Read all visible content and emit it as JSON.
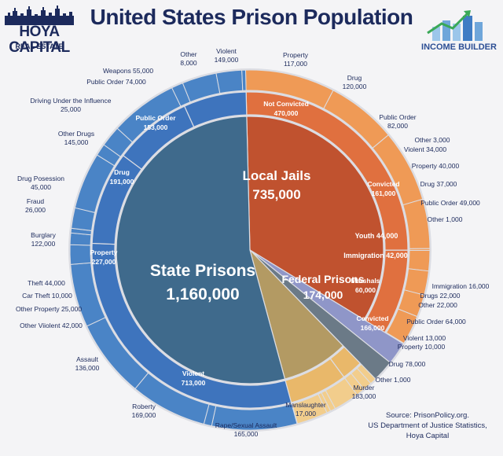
{
  "header": {
    "title": "United States Prison Population",
    "logo_left_name": "HOYA CAPITAL",
    "logo_left_sub": "REAL ESTATE",
    "logo_right_name": "INCOME BUILDER"
  },
  "source": {
    "line1": "Source: PrisonPolicy.org.",
    "line2": "US Department of Justice Statistics,",
    "line3": "Hoya Capital"
  },
  "colors": {
    "state": "#3f6a8c",
    "state_mid": "#3e74bd",
    "state_outer": "#4a84c6",
    "local": "#c0522f",
    "local_mid": "#e0703f",
    "local_outer": "#ef9a56",
    "federal": "#b39a63",
    "federal_mid": "#e9b86a",
    "federal_outer": "#f2cd8c",
    "youth": "#8f96c8",
    "immigration": "#6b7a87",
    "separator": "#dcdde3",
    "title": "#1c2a5c"
  },
  "chart_data": {
    "type": "pie",
    "title": "United States Prison Population",
    "inner": [
      {
        "id": "state",
        "label": "State Prisons",
        "value": 1160000,
        "value_label": "1,160,000"
      },
      {
        "id": "local",
        "label": "Local Jails",
        "value": 735000,
        "value_label": "735,000"
      },
      {
        "id": "federal",
        "label": "Federal Prisons",
        "value": 174000,
        "value_label": "174,000"
      },
      {
        "id": "youth",
        "label": "Youth",
        "value": 44000,
        "value_label": "44,000"
      },
      {
        "id": "immigration",
        "label": "Immigration",
        "value": 42000,
        "value_label": "42,000"
      }
    ],
    "middle": [
      {
        "parent": "local",
        "label": "Not Convicted",
        "value": 470000,
        "value_label": "470,000"
      },
      {
        "parent": "local",
        "label": "Convicted",
        "value": 161000,
        "value_label": "161,000"
      },
      {
        "parent": "federal",
        "label": "Marshals",
        "value": 60000,
        "value_label": "60,000"
      },
      {
        "parent": "federal",
        "label": "Convicted",
        "value": 166000,
        "value_label": "166,000"
      },
      {
        "parent": "state",
        "label": "Violent",
        "value": 713000,
        "value_label": "713,000"
      },
      {
        "parent": "state",
        "label": "Property",
        "value": 227000,
        "value_label": "227,000"
      },
      {
        "parent": "state",
        "label": "Drug",
        "value": 191000,
        "value_label": "191,000"
      },
      {
        "parent": "state",
        "label": "Public Order",
        "value": 153000,
        "value_label": "153,000"
      }
    ],
    "outer": [
      {
        "parent": "local",
        "label": "Violent",
        "value": 149000,
        "value_label": "149,000"
      },
      {
        "parent": "local",
        "label": "Property",
        "value": 117000,
        "value_label": "117,000"
      },
      {
        "parent": "local",
        "label": "Drug",
        "value": 120000,
        "value_label": "120,000"
      },
      {
        "parent": "local",
        "label": "Public Order",
        "value": 82000,
        "value_label": "82,000"
      },
      {
        "parent": "local",
        "label": "Other",
        "value": 3000,
        "value_label": "3,000"
      },
      {
        "parent": "local",
        "label": "Violent",
        "value": 34000,
        "value_label": "34,000"
      },
      {
        "parent": "local",
        "label": "Property",
        "value": 40000,
        "value_label": "40,000"
      },
      {
        "parent": "local",
        "label": "Drug",
        "value": 37000,
        "value_label": "37,000"
      },
      {
        "parent": "local",
        "label": "Public Order",
        "value": 49000,
        "value_label": "49,000"
      },
      {
        "parent": "local",
        "label": "Other",
        "value": 1000,
        "value_label": "1,000"
      },
      {
        "parent": "federal",
        "label": "Immigration",
        "value": 16000,
        "value_label": "16,000"
      },
      {
        "parent": "federal",
        "label": "Drugs",
        "value": 22000,
        "value_label": "22,000"
      },
      {
        "parent": "federal",
        "label": "Other",
        "value": 22000,
        "value_label": "22,000"
      },
      {
        "parent": "federal",
        "label": "Public Order",
        "value": 64000,
        "value_label": "64,000"
      },
      {
        "parent": "federal",
        "label": "Violent",
        "value": 13000,
        "value_label": "13,000"
      },
      {
        "parent": "federal",
        "label": "Property",
        "value": 10000,
        "value_label": "10,000"
      },
      {
        "parent": "federal",
        "label": "Drug",
        "value": 78000,
        "value_label": "78,000"
      },
      {
        "parent": "federal",
        "label": "Other",
        "value": 1000,
        "value_label": "1,000"
      },
      {
        "parent": "state",
        "label": "Murder",
        "value": 183000,
        "value_label": "183,000"
      },
      {
        "parent": "state",
        "label": "Manslaughter",
        "value": 17000,
        "value_label": "17,000"
      },
      {
        "parent": "state",
        "label": "Rape/Sexual Assault",
        "value": 165000,
        "value_label": "165,000"
      },
      {
        "parent": "state",
        "label": "Roberty",
        "value": 169000,
        "value_label": "169,000"
      },
      {
        "parent": "state",
        "label": "Assault",
        "value": 136000,
        "value_label": "136,000"
      },
      {
        "parent": "state",
        "label": "Other Viiolent",
        "value": 42000,
        "value_label": "42,000"
      },
      {
        "parent": "state",
        "label": "Other Property",
        "value": 25000,
        "value_label": "25,000"
      },
      {
        "parent": "state",
        "label": "Car Theft",
        "value": 10000,
        "value_label": "10,000"
      },
      {
        "parent": "state",
        "label": "Theft",
        "value": 44000,
        "value_label": "44,000"
      },
      {
        "parent": "state",
        "label": "Burglary",
        "value": 122000,
        "value_label": "122,000"
      },
      {
        "parent": "state",
        "label": "Fraud",
        "value": 26000,
        "value_label": "26,000"
      },
      {
        "parent": "state",
        "label": "Drug Posession",
        "value": 45000,
        "value_label": "45,000"
      },
      {
        "parent": "state",
        "label": "Other Drugs",
        "value": 145000,
        "value_label": "145,000"
      },
      {
        "parent": "state",
        "label": "Driving Under the Influence",
        "value": 25000,
        "value_label": "25,000"
      },
      {
        "parent": "state",
        "label": "Public Order",
        "value": 74000,
        "value_label": "74,000"
      },
      {
        "parent": "state",
        "label": "Weapons",
        "value": 55000,
        "value_label": "55,000"
      },
      {
        "parent": "state",
        "label": "Other",
        "value": 8000,
        "value_label": "8,000"
      }
    ]
  }
}
